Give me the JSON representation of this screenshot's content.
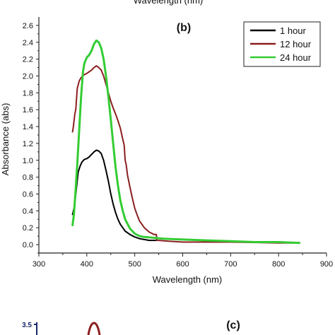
{
  "top_fragment": {
    "text": "Wavelength (nm)"
  },
  "panel_b": {
    "label": "(b)",
    "chart_data": {
      "type": "line",
      "xlabel": "Wavelength (nm)",
      "ylabel": "Absorbance (abs)",
      "xlim": [
        300,
        900
      ],
      "ylim": [
        -0.1,
        2.7
      ],
      "xticks": [
        "300",
        "400",
        "500",
        "600",
        "700",
        "800",
        "900"
      ],
      "yticks": [
        "0.0",
        "0.2",
        "0.4",
        "0.6",
        "0.8",
        "1.0",
        "1.2",
        "1.4",
        "1.6",
        "1.8",
        "2.0",
        "2.2",
        "2.4",
        "2.6"
      ],
      "legend_position": "top-right",
      "grid": false,
      "series": [
        {
          "name": "1 hour",
          "color": "#000000",
          "points": [
            [
              370,
              0.35
            ],
            [
              374,
              0.45
            ],
            [
              378,
              0.65
            ],
            [
              382,
              0.86
            ],
            [
              386,
              0.93
            ],
            [
              390,
              0.98
            ],
            [
              395,
              1.01
            ],
            [
              400,
              1.02
            ],
            [
              405,
              1.04
            ],
            [
              410,
              1.07
            ],
            [
              415,
              1.1
            ],
            [
              420,
              1.12
            ],
            [
              425,
              1.11
            ],
            [
              430,
              1.08
            ],
            [
              435,
              1.0
            ],
            [
              440,
              0.88
            ],
            [
              445,
              0.75
            ],
            [
              450,
              0.6
            ],
            [
              455,
              0.48
            ],
            [
              460,
              0.38
            ],
            [
              465,
              0.3
            ],
            [
              470,
              0.24
            ],
            [
              480,
              0.16
            ],
            [
              490,
              0.12
            ],
            [
              500,
              0.09
            ],
            [
              510,
              0.07
            ],
            [
              520,
              0.06
            ],
            [
              530,
              0.05
            ],
            [
              545,
              0.05
            ]
          ]
        },
        {
          "name": "12 hour",
          "color": "#8b1f1f",
          "points": [
            [
              370,
              1.33
            ],
            [
              372,
              1.4
            ],
            [
              375,
              1.55
            ],
            [
              377,
              1.6
            ],
            [
              380,
              1.85
            ],
            [
              384,
              1.94
            ],
            [
              388,
              1.98
            ],
            [
              393,
              2.01
            ],
            [
              400,
              2.03
            ],
            [
              405,
              2.05
            ],
            [
              410,
              2.07
            ],
            [
              415,
              2.1
            ],
            [
              420,
              2.12
            ],
            [
              425,
              2.1
            ],
            [
              430,
              2.07
            ],
            [
              435,
              2.0
            ],
            [
              440,
              1.9
            ],
            [
              445,
              1.8
            ],
            [
              450,
              1.7
            ],
            [
              455,
              1.62
            ],
            [
              460,
              1.55
            ],
            [
              465,
              1.47
            ],
            [
              470,
              1.38
            ],
            [
              475,
              1.25
            ],
            [
              478,
              1.18
            ],
            [
              480,
              1.0
            ],
            [
              482,
              0.95
            ],
            [
              485,
              0.82
            ],
            [
              490,
              0.68
            ],
            [
              495,
              0.55
            ],
            [
              500,
              0.43
            ],
            [
              505,
              0.35
            ],
            [
              510,
              0.28
            ],
            [
              520,
              0.2
            ],
            [
              530,
              0.15
            ],
            [
              540,
              0.12
            ],
            [
              545,
              0.12
            ],
            [
              546,
              0.05
            ],
            [
              550,
              0.05
            ],
            [
              570,
              0.04
            ],
            [
              600,
              0.03
            ],
            [
              700,
              0.03
            ],
            [
              800,
              0.02
            ],
            [
              845,
              0.02
            ]
          ]
        },
        {
          "name": "24 hour",
          "color": "#33cc33",
          "points": [
            [
              370,
              0.22
            ],
            [
              373,
              0.35
            ],
            [
              376,
              0.6
            ],
            [
              380,
              0.95
            ],
            [
              384,
              1.35
            ],
            [
              388,
              1.75
            ],
            [
              392,
              2.05
            ],
            [
              395,
              2.15
            ],
            [
              400,
              2.22
            ],
            [
              405,
              2.25
            ],
            [
              410,
              2.3
            ],
            [
              415,
              2.38
            ],
            [
              420,
              2.42
            ],
            [
              425,
              2.4
            ],
            [
              430,
              2.33
            ],
            [
              435,
              2.2
            ],
            [
              440,
              2.0
            ],
            [
              445,
              1.75
            ],
            [
              450,
              1.48
            ],
            [
              455,
              1.2
            ],
            [
              460,
              0.92
            ],
            [
              465,
              0.7
            ],
            [
              470,
              0.52
            ],
            [
              475,
              0.4
            ],
            [
              480,
              0.3
            ],
            [
              490,
              0.19
            ],
            [
              500,
              0.13
            ],
            [
              510,
              0.1
            ],
            [
              520,
              0.09
            ],
            [
              540,
              0.08
            ],
            [
              560,
              0.07
            ],
            [
              600,
              0.06
            ],
            [
              650,
              0.05
            ],
            [
              700,
              0.04
            ],
            [
              750,
              0.03
            ],
            [
              800,
              0.03
            ],
            [
              845,
              0.02
            ]
          ]
        }
      ]
    }
  },
  "panel_c": {
    "label": "(c)",
    "ytick_top": "3.5"
  }
}
